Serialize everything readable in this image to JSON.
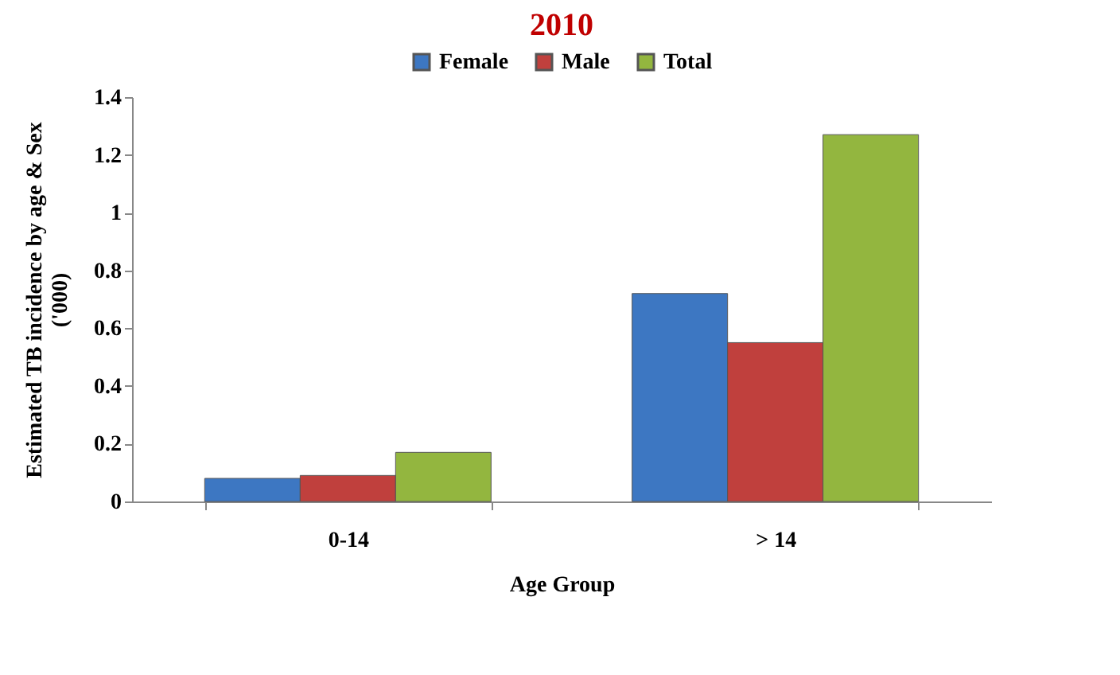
{
  "chart_data": {
    "type": "bar",
    "title": "2010",
    "xlabel": "Age Group",
    "ylabel": "Estimated TB incidence by age & Sex\n('000)",
    "categories": [
      "0-14",
      "> 14"
    ],
    "series": [
      {
        "name": "Female",
        "color": "#3d77c2",
        "values": [
          0.08,
          0.72
        ]
      },
      {
        "name": "Male",
        "color": "#c0403d",
        "values": [
          0.09,
          0.55
        ]
      },
      {
        "name": "Total",
        "color": "#93b63f",
        "values": [
          0.17,
          1.27
        ]
      }
    ],
    "ylim": [
      0,
      1.4
    ],
    "yticks": [
      0,
      0.2,
      0.4,
      0.6,
      0.8,
      1,
      1.2,
      1.4
    ],
    "grid": false,
    "legend": "top"
  }
}
